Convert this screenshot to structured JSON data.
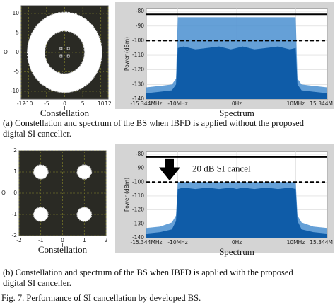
{
  "chart_data": [
    {
      "type": "ring",
      "title": "Constellation",
      "xlabel": "I",
      "ylabel": "Q",
      "xlim": [
        -12,
        12
      ],
      "ylim": [
        -12,
        12
      ],
      "xticks": [
        -12,
        -10,
        -5,
        0,
        5,
        10,
        12
      ],
      "yticks": [
        -10,
        -5,
        0,
        5,
        10
      ],
      "ring": {
        "inner_radius": 5.5,
        "outer_radius": 10.3
      },
      "points": {
        "x": [
          -1,
          1,
          -1,
          1
        ],
        "y": [
          1,
          1,
          -1,
          -1
        ]
      }
    },
    {
      "type": "area",
      "title": "Spectrum",
      "ylabel": "Power (dBm)",
      "xlim": [
        -15.344,
        15.344
      ],
      "ylim": [
        -140,
        -78
      ],
      "xticks": [
        {
          "value": -15.344,
          "label": "-15.344MHz"
        },
        {
          "value": -10,
          "label": "-10MHz"
        },
        {
          "value": 0,
          "label": "0Hz"
        },
        {
          "value": 10,
          "label": "10MHz"
        },
        {
          "value": 15.344,
          "label": "15.344M"
        }
      ],
      "yticks": [
        -140,
        -130,
        -120,
        -110,
        -100,
        -90,
        -80
      ],
      "x": [
        -15.344,
        -13,
        -11,
        -10.3,
        -10,
        -9,
        -7,
        -5,
        -3,
        -1,
        0,
        1,
        3,
        5,
        7,
        9,
        10,
        10.3,
        11,
        13,
        15.344
      ],
      "series": [
        {
          "color": "#4a8fd0",
          "values": [
            -132,
            -131,
            -130,
            -126,
            -84,
            -84,
            -84,
            -84,
            -84,
            -84,
            -84,
            -84,
            -84,
            -84,
            -84,
            -84,
            -84,
            -126,
            -130,
            -131,
            -132
          ]
        },
        {
          "color": "#0f5ca8",
          "values": [
            -136,
            -135,
            -134,
            -130,
            -105,
            -104,
            -106,
            -105,
            -104,
            -106,
            -105,
            -104,
            -106,
            -105,
            -104,
            -106,
            -105,
            -130,
            -134,
            -135,
            -136
          ]
        }
      ],
      "hlines": [
        {
          "value": -82,
          "style": "solid"
        },
        {
          "value": -100,
          "style": "dashed"
        }
      ]
    },
    {
      "type": "clusters",
      "title": "Constellation",
      "xlabel": "I",
      "ylabel": "Q",
      "xlim": [
        -2,
        2
      ],
      "ylim": [
        -2,
        2
      ],
      "xticks": [
        -2,
        -1,
        0,
        1,
        2
      ],
      "yticks": [
        -2,
        -1,
        0,
        1,
        2
      ],
      "centers": {
        "x": [
          -1,
          1,
          -1,
          1
        ],
        "y": [
          1,
          1,
          -1,
          -1
        ]
      },
      "spread": 0.33
    },
    {
      "type": "area",
      "title": "Spectrum",
      "ylabel": "Power (dBm)",
      "annotation": "20 dB SI cancel",
      "xlim": [
        -15.344,
        15.344
      ],
      "ylim": [
        -140,
        -78
      ],
      "xticks": [
        {
          "value": -15.344,
          "label": "-15.344MHz"
        },
        {
          "value": -10,
          "label": "-10MHz"
        },
        {
          "value": 0,
          "label": "0Hz"
        },
        {
          "value": 10,
          "label": "10MHz"
        },
        {
          "value": 15.344,
          "label": "15.344M"
        }
      ],
      "yticks": [
        -140,
        -130,
        -120,
        -110,
        -100,
        -90,
        -80
      ],
      "x": [
        -15.344,
        -13,
        -11,
        -10.3,
        -10,
        -9,
        -7,
        -5,
        -3,
        -1,
        0,
        1,
        3,
        5,
        7,
        9,
        10,
        10.3,
        11,
        13,
        15.344
      ],
      "series": [
        {
          "color": "#4a8fd0",
          "values": [
            -133,
            -132,
            -129,
            -124,
            -100,
            -100,
            -100,
            -100,
            -100,
            -100,
            -100,
            -100,
            -100,
            -100,
            -100,
            -100,
            -100,
            -124,
            -129,
            -132,
            -133
          ]
        },
        {
          "color": "#0f5ca8",
          "values": [
            -137,
            -136,
            -134,
            -128,
            -105,
            -104,
            -105,
            -104,
            -105,
            -104,
            -105,
            -104,
            -105,
            -104,
            -105,
            -104,
            -105,
            -128,
            -134,
            -136,
            -137
          ]
        }
      ],
      "hlines": [
        {
          "value": -82,
          "style": "solid"
        },
        {
          "value": -100,
          "style": "dashed"
        }
      ]
    }
  ],
  "panel_captions": [
    [
      "(a) Constellation and spectrum of the BS when IBFD is applied without the proposed",
      "digital SI canceller."
    ],
    [
      "(b) Constellation and spectrum of the BS when IBFD is applied with the proposed",
      "digital SI canceller."
    ]
  ],
  "figure_caption": "Fig. 7.  Performance of SI cancellation by developed BS."
}
